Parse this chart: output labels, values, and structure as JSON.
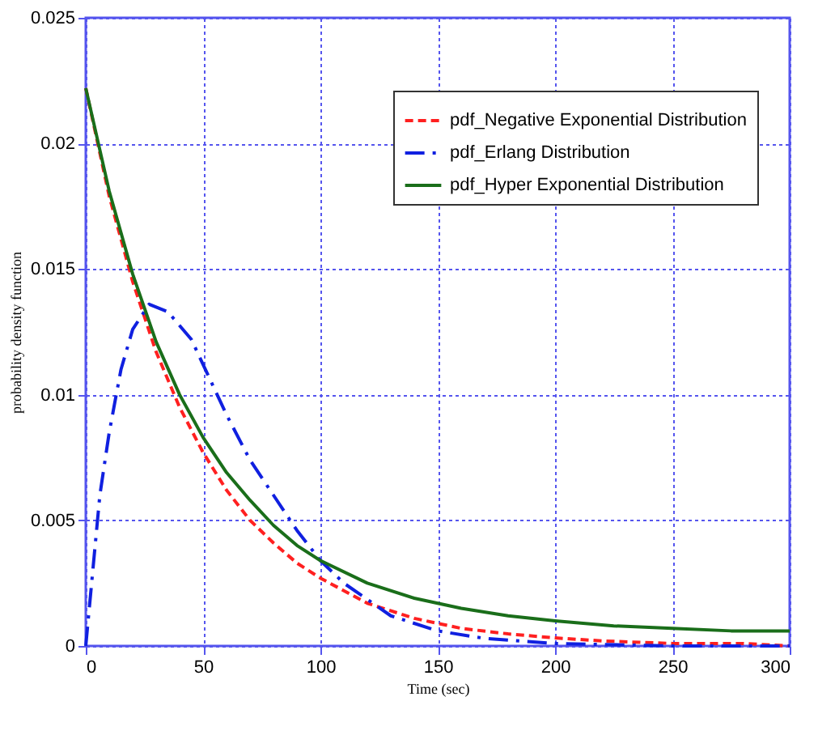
{
  "chart_data": {
    "type": "line",
    "xlabel": "Time (sec)",
    "ylabel": "probability density function",
    "xlim": [
      0,
      300
    ],
    "xticks": [
      0,
      50,
      100,
      150,
      200,
      250,
      300
    ],
    "ylim": [
      0,
      0.025
    ],
    "yticks": [
      0,
      0.005,
      0.01,
      0.015,
      0.02,
      0.025
    ],
    "grid": true,
    "legend": "top right",
    "marker": "none",
    "series": [
      {
        "name": "pdf_Negative Exponential Distribution",
        "color": "#ff2020",
        "line_style": "dashed",
        "x": [
          0,
          10,
          20,
          30,
          40,
          50,
          60,
          70,
          80,
          90,
          100,
          120,
          140,
          160,
          180,
          200,
          220,
          250,
          280,
          300
        ],
        "values": [
          0.0222,
          0.0179,
          0.0145,
          0.0117,
          0.0095,
          0.0077,
          0.0062,
          0.005,
          0.0041,
          0.0033,
          0.0027,
          0.0017,
          0.0011,
          0.0007,
          0.00048,
          0.00032,
          0.0002,
          0.0001,
          0.0001,
          0
        ]
      },
      {
        "name": "pdf_Erlang Distribution",
        "color": "#1020e0",
        "line_style": "dashdot",
        "x": [
          0,
          3,
          6,
          10,
          15,
          20,
          27,
          35,
          45,
          50,
          60,
          70,
          80,
          90,
          100,
          110,
          130,
          150,
          170,
          200,
          250,
          300
        ],
        "values": [
          0,
          0.003,
          0.006,
          0.0085,
          0.011,
          0.0126,
          0.0136,
          0.0133,
          0.0122,
          0.0112,
          0.0092,
          0.0074,
          0.006,
          0.0046,
          0.0034,
          0.0025,
          0.0012,
          0.0006,
          0.0003,
          0.0001,
          0,
          0
        ]
      },
      {
        "name": "pdf_Hyper Exponential Distribution",
        "color": "#1a6e1a",
        "line_style": "solid",
        "x": [
          0,
          10,
          20,
          30,
          40,
          50,
          60,
          70,
          80,
          90,
          100,
          120,
          140,
          160,
          180,
          200,
          225,
          250,
          275,
          300
        ],
        "values": [
          0.0222,
          0.0181,
          0.0148,
          0.0121,
          0.01,
          0.0083,
          0.0069,
          0.0058,
          0.0048,
          0.004,
          0.0034,
          0.0025,
          0.0019,
          0.0015,
          0.0012,
          0.001,
          0.0008,
          0.0007,
          0.0006,
          0.0006
        ]
      }
    ]
  }
}
